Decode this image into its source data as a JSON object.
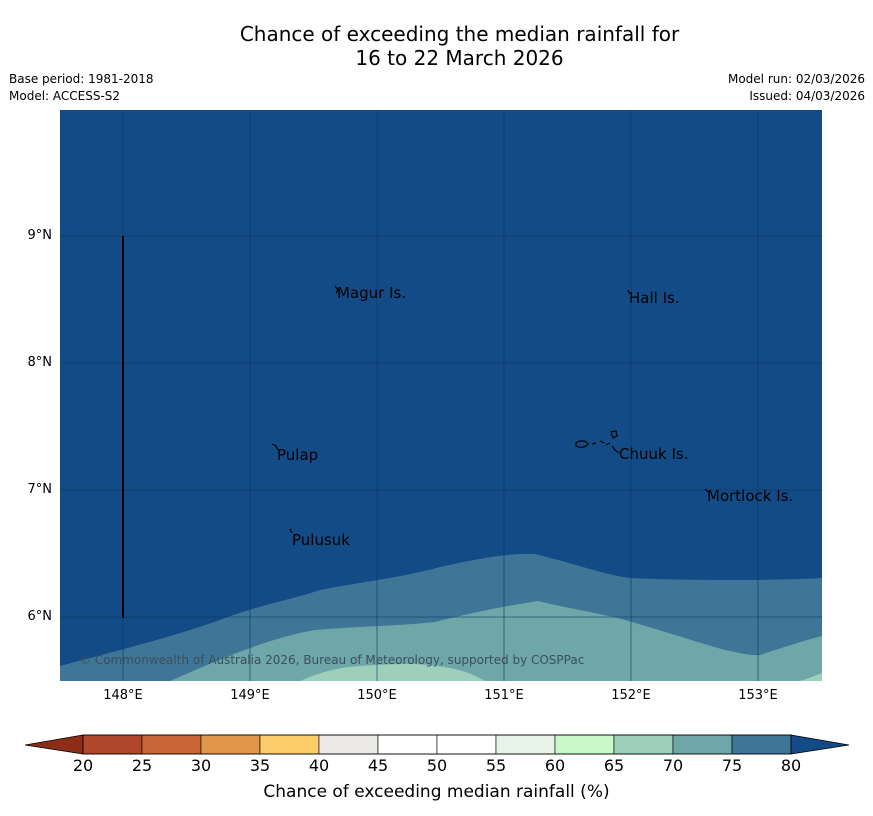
{
  "title": {
    "line1": "Chance of exceeding the median rainfall for",
    "line2": "16 to 22 March 2026"
  },
  "meta": {
    "base_period": "Base period: 1981-2018",
    "model": "Model: ACCESS-S2",
    "model_run": "Model run: 02/03/2026",
    "issued": "Issued: 04/03/2026"
  },
  "map": {
    "colors": {
      "above_80": "#124b85",
      "band_75_80": "#3f7698",
      "band_70_75": "#6fa6a8",
      "band_65_70": "#9dcfba",
      "coast": "#000000",
      "grid": "#0b3560"
    },
    "lat_labels": [
      "9°N",
      "8°N",
      "7°N",
      "6°N"
    ],
    "lon_labels": [
      "148°E",
      "149°E",
      "150°E",
      "151°E",
      "152°E",
      "153°E"
    ],
    "places": [
      {
        "name": "Magur Is."
      },
      {
        "name": "Hall Is."
      },
      {
        "name": "Pulap"
      },
      {
        "name": "Chuuk Is."
      },
      {
        "name": "Mortlock Is."
      },
      {
        "name": "Pulusuk"
      }
    ],
    "copyright": "© Commonwealth of Australia 2026, Bureau of Meteorology, supported by COSPPac"
  },
  "colorbar": {
    "label": "Chance of exceeding median rainfall (%)",
    "ticks": [
      "20",
      "25",
      "30",
      "35",
      "40",
      "45",
      "50",
      "55",
      "60",
      "65",
      "70",
      "75",
      "80"
    ],
    "under_color": "#8c2d18",
    "over_color": "#124b85",
    "band_colors": [
      "#b0462a",
      "#cc6535",
      "#e2964c",
      "#fdcc6a",
      "#eceae6",
      "#ffffff",
      "#ffffff",
      "#e8f3e8",
      "#c8f7c8",
      "#9dcfba",
      "#6fa6a8",
      "#3f7698"
    ]
  }
}
